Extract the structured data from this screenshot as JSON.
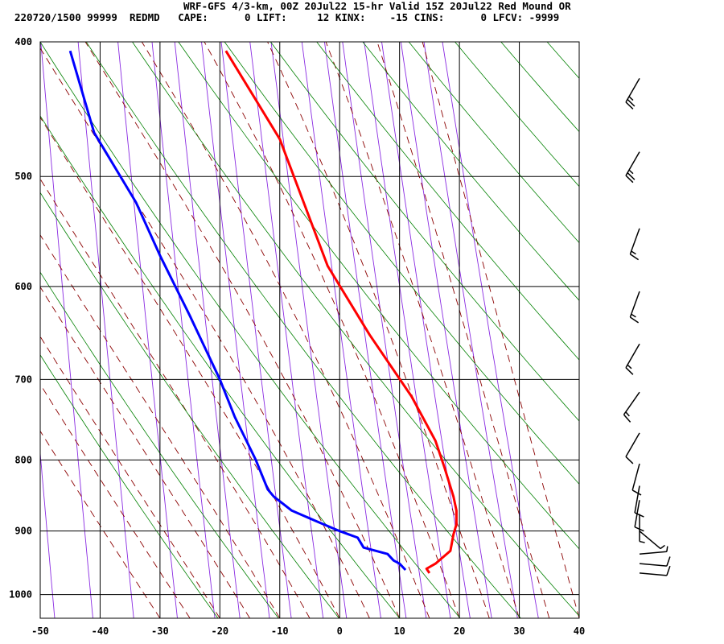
{
  "header": {
    "title": "WRF-GFS 4/3-km, 00Z 20Jul22 15-hr Valid 15Z 20Jul22 Red Mound OR",
    "indices": "220720/1500 99999  REDMD   CAPE:      0 LIFT:     12 KINX:    -15 CINS:      0 LFCV: -9999"
  },
  "chart_data": {
    "type": "line",
    "chart_kind": "skew-T log-P sounding",
    "x_axis": {
      "label": "",
      "range": [
        -50,
        40
      ],
      "ticks": [
        -50,
        -40,
        -30,
        -20,
        -10,
        0,
        10,
        20,
        30,
        40
      ],
      "tick_labels": [
        "-50",
        "-40",
        "-30",
        "-20",
        "-10",
        "0",
        "10",
        "20",
        "30",
        "40"
      ]
    },
    "y_axis": {
      "label": "",
      "scale": "log",
      "range": [
        1040,
        400
      ],
      "ticks": [
        400,
        500,
        600,
        700,
        800,
        900,
        1000
      ],
      "tick_labels": [
        "400",
        "500",
        "600",
        "700",
        "800",
        "900",
        "1000"
      ]
    },
    "grid": true,
    "background_lines": {
      "isotherms": {
        "color": "#000000",
        "style": "vertical black lines at tick temperatures"
      },
      "dry_adiabats": {
        "color": "#008000"
      },
      "moist_adiabats": {
        "color": "#8b0000",
        "style": "dashed"
      },
      "mixing_ratio": {
        "color": "#8a2be2"
      }
    },
    "series": [
      {
        "color": "#ff0000",
        "points": [
          [
            -19,
            406
          ],
          [
            -10,
            470
          ],
          [
            -2,
            580
          ],
          [
            5,
            650
          ],
          [
            12,
            720
          ],
          [
            16,
            775
          ],
          [
            17.5,
            810
          ],
          [
            19,
            850
          ],
          [
            19.5,
            870
          ],
          [
            19.5,
            890
          ],
          [
            19,
            905
          ],
          [
            18.5,
            930
          ],
          [
            16,
            950
          ],
          [
            14.5,
            958
          ],
          [
            15,
            965
          ]
        ]
      },
      {
        "color": "#0000ff",
        "points": [
          [
            -45,
            406
          ],
          [
            -41,
            465
          ],
          [
            -34,
            522
          ],
          [
            -30,
            570
          ],
          [
            -25,
            630
          ],
          [
            -20,
            700
          ],
          [
            -17.5,
            745
          ],
          [
            -14,
            800
          ],
          [
            -12,
            840
          ],
          [
            -11,
            850
          ],
          [
            -8,
            870
          ],
          [
            -4,
            885
          ],
          [
            0,
            900
          ],
          [
            1.5,
            905
          ],
          [
            3,
            910
          ],
          [
            4,
            925
          ],
          [
            6,
            930
          ],
          [
            8,
            935
          ],
          [
            9,
            945
          ],
          [
            10,
            950
          ],
          [
            11,
            960
          ]
        ]
      }
    ],
    "wind_barbs": [
      {
        "p": 425,
        "dir_deg": 210,
        "speed_kt": 25
      },
      {
        "p": 480,
        "dir_deg": 210,
        "speed_kt": 25
      },
      {
        "p": 545,
        "dir_deg": 200,
        "speed_kt": 15
      },
      {
        "p": 605,
        "dir_deg": 200,
        "speed_kt": 15
      },
      {
        "p": 660,
        "dir_deg": 210,
        "speed_kt": 15
      },
      {
        "p": 715,
        "dir_deg": 215,
        "speed_kt": 15
      },
      {
        "p": 765,
        "dir_deg": 210,
        "speed_kt": 10
      },
      {
        "p": 805,
        "dir_deg": 195,
        "speed_kt": 10
      },
      {
        "p": 835,
        "dir_deg": 190,
        "speed_kt": 10
      },
      {
        "p": 855,
        "dir_deg": 190,
        "speed_kt": 10
      },
      {
        "p": 875,
        "dir_deg": 180,
        "speed_kt": 5
      },
      {
        "p": 900,
        "dir_deg": 130,
        "speed_kt": 5
      },
      {
        "p": 935,
        "dir_deg": 85,
        "speed_kt": 5
      },
      {
        "p": 950,
        "dir_deg": 95,
        "speed_kt": 10
      },
      {
        "p": 965,
        "dir_deg": 95,
        "speed_kt": 10
      }
    ]
  }
}
